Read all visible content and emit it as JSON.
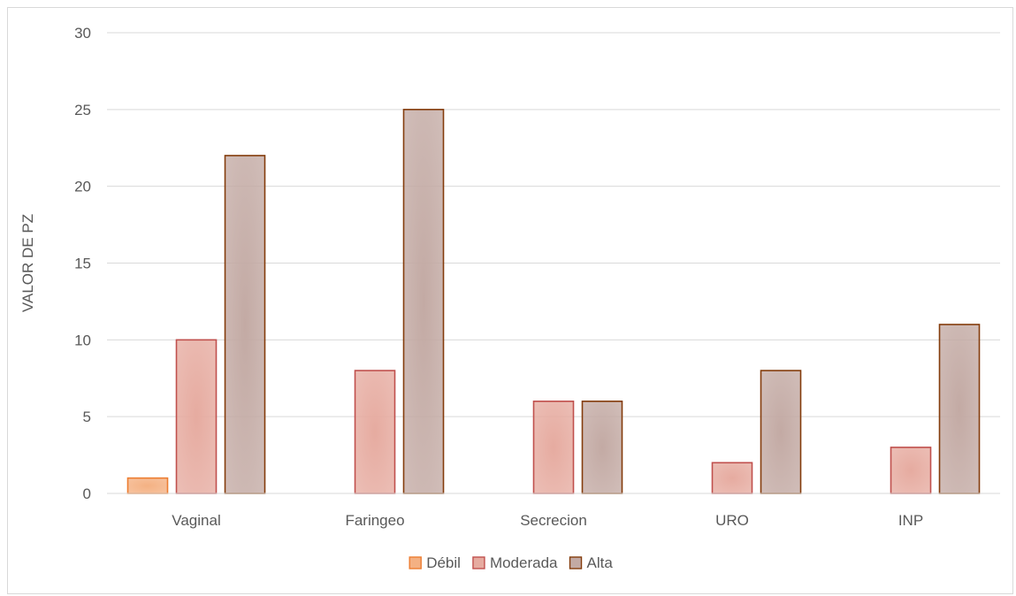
{
  "chart_data": {
    "type": "bar",
    "categories": [
      "Vaginal",
      "Faringeo",
      "Secrecion",
      "URO",
      "INP"
    ],
    "series": [
      {
        "name": "Débil",
        "values": [
          1,
          0,
          0,
          0,
          0
        ],
        "color": "#f4b183",
        "edge": "#ed7d31"
      },
      {
        "name": "Moderada",
        "values": [
          10,
          8,
          6,
          2,
          3
        ],
        "color": "#e6aba0",
        "edge": "#c0504d"
      },
      {
        "name": "Alta",
        "values": [
          22,
          25,
          6,
          8,
          11
        ],
        "color": "#c3aaa4",
        "edge": "#843c0c"
      }
    ],
    "title": "",
    "xlabel": "",
    "ylabel": "VALOR DE PZ",
    "ylim": [
      0,
      30
    ],
    "yticks": [
      0,
      5,
      10,
      15,
      20,
      25,
      30
    ],
    "grid": true,
    "legend": "bottom"
  }
}
